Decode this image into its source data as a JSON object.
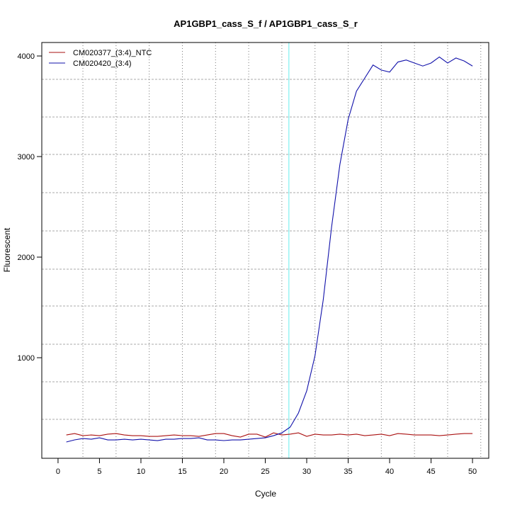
{
  "chart_data": {
    "type": "line",
    "title": "AP1GBP1_cass_S_f / AP1GBP1_cass_S_r",
    "xlabel": "Cycle",
    "ylabel": "Fluorescent",
    "xlim": [
      -1.96,
      51.96
    ],
    "ylim": [
      0,
      4134
    ],
    "x_ticks": [
      0,
      5,
      10,
      15,
      20,
      25,
      30,
      35,
      40,
      45,
      50
    ],
    "y_ticks": [
      1000,
      2000,
      3000,
      4000
    ],
    "grid": true,
    "x_grid": [
      3,
      7,
      11,
      15,
      19,
      23,
      27,
      31,
      35,
      39,
      43,
      47,
      51
    ],
    "y_grid": [
      387,
      761,
      1134,
      1514,
      1880,
      2261,
      2641,
      3021,
      3394,
      3768
    ],
    "threshold_cycle": 27.85,
    "threshold_color": "#66eeee",
    "legend_position": "top-left",
    "x": [
      1,
      2,
      3,
      4,
      5,
      6,
      7,
      8,
      9,
      10,
      11,
      12,
      13,
      14,
      15,
      16,
      17,
      18,
      19,
      20,
      21,
      22,
      23,
      24,
      25,
      26,
      27,
      28,
      29,
      30,
      31,
      32,
      33,
      34,
      35,
      36,
      37,
      38,
      39,
      40,
      41,
      42,
      43,
      44,
      45,
      46,
      47,
      48,
      49,
      50
    ],
    "series": [
      {
        "name": "CM020377_(3:4)_NTC",
        "color": "#aa1111",
        "values": [
          232,
          246,
          225,
          232,
          225,
          240,
          246,
          232,
          225,
          225,
          218,
          218,
          225,
          232,
          225,
          225,
          218,
          232,
          246,
          246,
          225,
          211,
          240,
          240,
          211,
          253,
          232,
          240,
          253,
          218,
          240,
          232,
          232,
          240,
          232,
          240,
          225,
          232,
          240,
          225,
          246,
          240,
          232,
          232,
          232,
          225,
          232,
          240,
          246,
          246
        ]
      },
      {
        "name": "CM020420_(3:4)",
        "color": "#1111aa",
        "values": [
          162,
          183,
          197,
          190,
          204,
          183,
          183,
          190,
          183,
          190,
          183,
          176,
          190,
          190,
          197,
          197,
          204,
          183,
          183,
          176,
          183,
          183,
          190,
          197,
          204,
          225,
          253,
          310,
          450,
          670,
          1020,
          1580,
          2300,
          2920,
          3370,
          3650,
          3780,
          3910,
          3860,
          3840,
          3940,
          3960,
          3930,
          3900,
          3930,
          3990,
          3930,
          3980,
          3950,
          3900
        ]
      }
    ]
  }
}
